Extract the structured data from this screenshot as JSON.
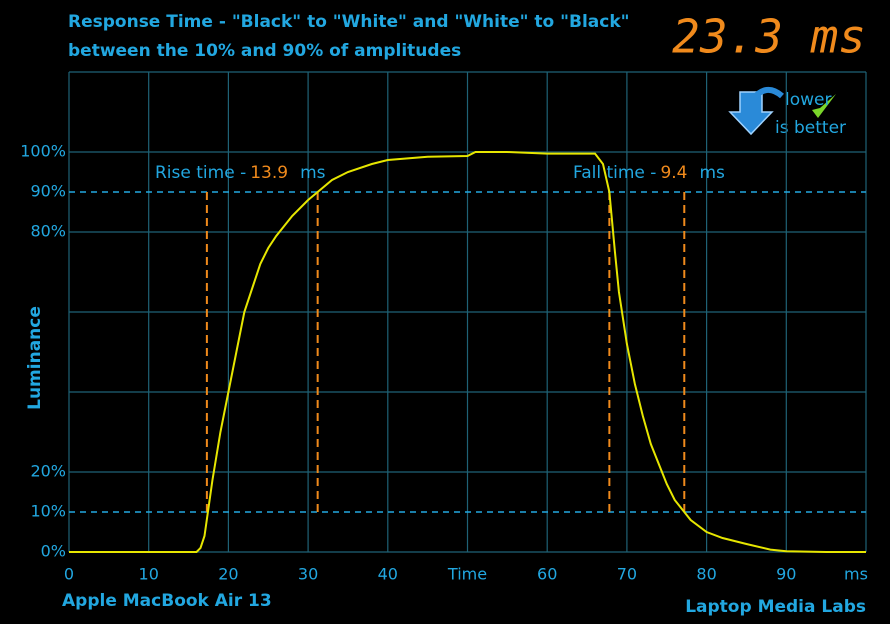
{
  "chart_data": {
    "type": "line",
    "title": "Response Time - \"Black\" to \"White\" and \"White\" to \"Black\"",
    "subtitle": "between the 10% and 90% of amplitudes",
    "headline": "23.3 ms",
    "ylabel": "Luminance",
    "xlabel": "Time",
    "x_unit": "ms",
    "source_left": "Apple MacBook Air 13",
    "source_right": "Laptop Media Labs",
    "badge": [
      "lower",
      "is better"
    ],
    "rise_label": "Rise time -",
    "rise_value": 13.9,
    "fall_label": "Fall time -",
    "fall_value": 9.4,
    "value_unit": "ms",
    "rise_markers": [
      17.3,
      31.2
    ],
    "fall_markers": [
      67.8,
      77.2
    ],
    "xlim": [
      0,
      100
    ],
    "ylim": [
      0,
      120
    ],
    "xticks": [
      0,
      10,
      20,
      30,
      40,
      60,
      70,
      80,
      90
    ],
    "xgrid": [
      0,
      10,
      20,
      30,
      40,
      50,
      60,
      70,
      80,
      90,
      100
    ],
    "yticks": [
      {
        "value": 0,
        "label": "0%"
      },
      {
        "value": 10,
        "label": "10%"
      },
      {
        "value": 20,
        "label": "20%"
      },
      {
        "value": 80,
        "label": "80%"
      },
      {
        "value": 90,
        "label": "90%"
      },
      {
        "value": 100,
        "label": "100%"
      }
    ],
    "ygrid": [
      0,
      20,
      40,
      60,
      80,
      100,
      120
    ],
    "dashed_levels": [
      10,
      90
    ],
    "series": [
      {
        "name": "Luminance",
        "color": "#e6e600",
        "x": [
          0,
          16,
          16.5,
          17,
          17.5,
          18,
          19,
          20,
          21,
          22,
          23,
          24,
          25,
          26,
          28,
          30,
          31.2,
          33,
          35,
          38,
          40,
          45,
          50,
          51,
          55,
          60,
          66,
          67,
          67.8,
          68.5,
          69,
          70,
          71,
          72,
          73,
          74,
          75,
          76,
          77.2,
          78,
          80,
          82,
          85,
          88,
          90,
          95,
          100
        ],
        "values": [
          0,
          0,
          1,
          4,
          11,
          18,
          30,
          40,
          50,
          60,
          66,
          72,
          76,
          79,
          84,
          88,
          90,
          93,
          95,
          97,
          98,
          98.8,
          99,
          100,
          100,
          99.6,
          99.6,
          97,
          90,
          75,
          65,
          52,
          42,
          34,
          27,
          22,
          17,
          13,
          10,
          8,
          5,
          3.5,
          2,
          0.6,
          0.2,
          0,
          0
        ]
      }
    ]
  }
}
